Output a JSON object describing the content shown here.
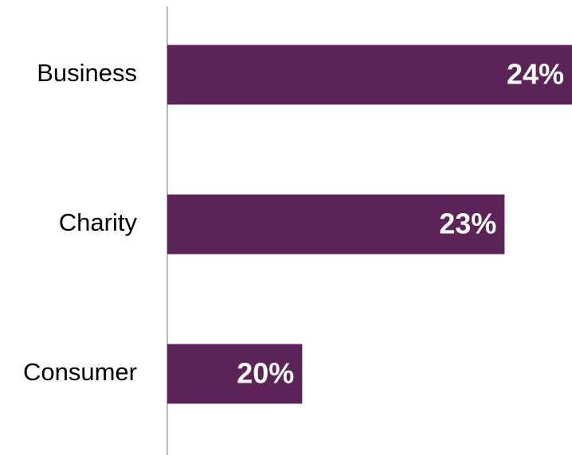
{
  "chart_data": {
    "type": "barh",
    "categories": [
      "Business",
      "Charity",
      "Consumer"
    ],
    "values": [
      24,
      23,
      20
    ],
    "value_labels": [
      "24%",
      "23%",
      "20%"
    ],
    "color": "#5b2358",
    "xlim": [
      18,
      24
    ]
  }
}
